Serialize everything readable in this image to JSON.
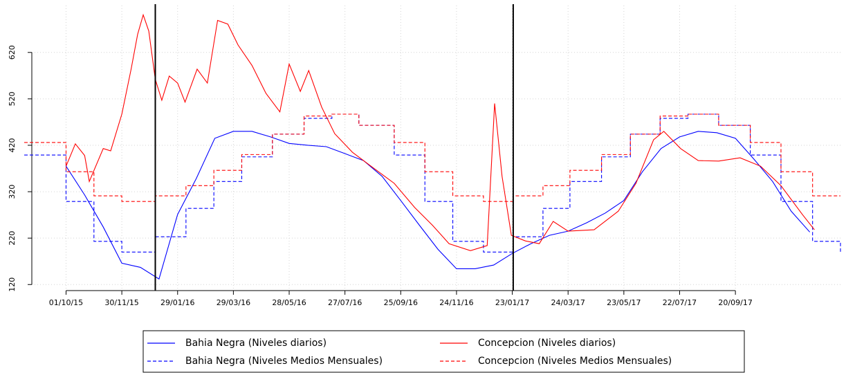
{
  "chart_data": {
    "type": "line",
    "xlim": [
      "17/08/15",
      "11/01/18"
    ],
    "ylim": [
      104,
      721
    ],
    "xticks": [
      "01/10/15",
      "30/11/15",
      "29/01/16",
      "29/03/16",
      "28/05/16",
      "27/07/16",
      "25/09/16",
      "24/11/16",
      "23/01/17",
      "24/03/17",
      "23/05/17",
      "22/07/17",
      "20/09/17"
    ],
    "yticks": [
      120,
      220,
      320,
      420,
      520,
      620
    ],
    "grid": true,
    "legend": "bottom",
    "reference_lines": [
      "05/01/16",
      "24/01/17"
    ],
    "series": [
      {
        "name": "Bahia Negra (Niveles diarios)",
        "color": "#0000ff",
        "dashed": false,
        "step": false,
        "x": [
          "01/10/15",
          "21/10/15",
          "10/11/15",
          "30/11/15",
          "20/12/15",
          "09/01/16",
          "29/01/16",
          "18/02/16",
          "09/03/16",
          "29/03/16",
          "18/04/16",
          "08/05/16",
          "28/05/16",
          "17/06/16",
          "07/07/16",
          "27/07/16",
          "16/08/16",
          "05/09/16",
          "25/09/16",
          "15/10/16",
          "04/11/16",
          "24/11/16",
          "14/12/16",
          "03/01/17",
          "23/01/17",
          "12/02/17",
          "04/03/17",
          "24/03/17",
          "13/04/17",
          "03/05/17",
          "23/05/17",
          "12/06/17",
          "02/07/17",
          "22/07/17",
          "11/08/17",
          "31/08/17",
          "20/09/17",
          "10/10/17",
          "30/10/17",
          "19/11/17",
          "09/12/17"
        ],
        "values": [
          375,
          313,
          244,
          166,
          157,
          132,
          271,
          348,
          435,
          450,
          450,
          438,
          424,
          420,
          417,
          402,
          387,
          353,
          301,
          248,
          196,
          154,
          154,
          162,
          187,
          208,
          226,
          235,
          253,
          274,
          301,
          363,
          413,
          438,
          450,
          447,
          435,
          390,
          342,
          278,
          233
        ]
      },
      {
        "name": "Bahia Negra (Niveles Medios Mensuales)",
        "color": "#0000ff",
        "dashed": true,
        "step": true,
        "x": [
          "17/08/15",
          "01/10/15",
          "31/10/15",
          "30/11/15",
          "05/01/16",
          "07/02/16",
          "08/03/16",
          "07/04/16",
          "10/05/16",
          "13/06/16",
          "13/07/16",
          "11/08/16",
          "18/09/16",
          "21/10/16",
          "20/11/16",
          "23/12/16",
          "24/01/17",
          "25/02/17",
          "26/03/17",
          "29/04/17",
          "30/05/17",
          "01/07/17",
          "31/07/17",
          "02/09/17",
          "06/10/17",
          "08/11/17",
          "12/12/17",
          "11/01/18"
        ],
        "values": [
          399,
          299,
          213,
          190,
          223,
          284,
          342,
          395,
          444,
          478,
          487,
          463,
          399,
          299,
          213,
          190,
          223,
          284,
          342,
          395,
          444,
          478,
          487,
          463,
          399,
          299,
          213,
          190
        ]
      },
      {
        "name": "Concepcion (Niveles diarios)",
        "color": "#ff0000",
        "dashed": false,
        "step": false,
        "x": [
          "01/10/15",
          "11/10/15",
          "21/10/15",
          "26/10/15",
          "10/11/15",
          "18/11/15",
          "30/11/15",
          "10/12/15",
          "17/12/15",
          "23/12/15",
          "29/12/15",
          "05/01/16",
          "12/01/16",
          "20/01/16",
          "29/01/16",
          "06/02/16",
          "19/02/16",
          "01/03/16",
          "12/03/16",
          "23/03/16",
          "03/04/16",
          "18/04/16",
          "03/05/16",
          "18/05/16",
          "28/05/16",
          "09/06/16",
          "18/06/16",
          "02/07/16",
          "16/07/16",
          "04/08/16",
          "26/08/16",
          "18/09/16",
          "10/10/16",
          "29/10/16",
          "16/11/16",
          "09/12/16",
          "27/12/16",
          "04/01/17",
          "12/01/17",
          "22/01/17",
          "06/02/17",
          "21/02/17",
          "08/03/17",
          "24/03/17",
          "21/04/17",
          "17/05/17",
          "05/06/17",
          "24/06/17",
          "05/07/17",
          "23/07/17",
          "11/08/17",
          "02/09/17",
          "25/09/17",
          "17/10/17",
          "08/11/17",
          "01/12/17",
          "14/12/17"
        ],
        "values": [
          375,
          423,
          398,
          342,
          413,
          408,
          487,
          584,
          659,
          701,
          666,
          562,
          517,
          569,
          554,
          513,
          584,
          554,
          689,
          681,
          636,
          592,
          532,
          492,
          595,
          536,
          581,
          502,
          445,
          405,
          372,
          338,
          286,
          248,
          208,
          193,
          204,
          510,
          353,
          226,
          214,
          208,
          256,
          235,
          238,
          278,
          338,
          432,
          450,
          413,
          387,
          386,
          393,
          375,
          333,
          271,
          238
        ]
      },
      {
        "name": "Concepcion (Niveles Medios Mensuales)",
        "color": "#ff0000",
        "dashed": true,
        "step": true,
        "x": [
          "17/08/15",
          "01/10/15",
          "31/10/15",
          "30/11/15",
          "05/01/16",
          "07/02/16",
          "08/03/16",
          "07/04/16",
          "10/05/16",
          "13/06/16",
          "13/07/16",
          "11/08/16",
          "18/09/16",
          "21/10/16",
          "20/11/16",
          "23/12/16",
          "24/01/17",
          "25/02/17",
          "26/03/17",
          "29/04/17",
          "30/05/17",
          "01/07/17",
          "31/07/17",
          "02/09/17",
          "06/10/17",
          "08/11/17",
          "12/12/17",
          "11/01/18"
        ],
        "values": [
          426,
          363,
          311,
          299,
          311,
          333,
          366,
          400,
          444,
          483,
          487,
          463,
          426,
          363,
          311,
          299,
          311,
          333,
          366,
          400,
          444,
          483,
          487,
          463,
          426,
          363,
          311,
          311
        ]
      }
    ]
  }
}
